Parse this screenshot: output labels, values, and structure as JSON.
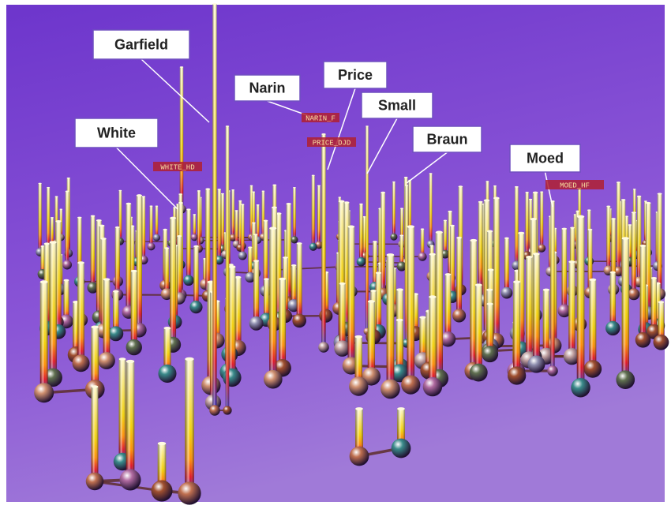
{
  "labels": [
    "Garfield",
    "Narin",
    "Price",
    "Small",
    "White",
    "Braun",
    "Moed"
  ],
  "tags": [
    "WHITE_HD",
    "NARIN_F",
    "PRICE_DJD",
    "MOED_HF"
  ]
}
